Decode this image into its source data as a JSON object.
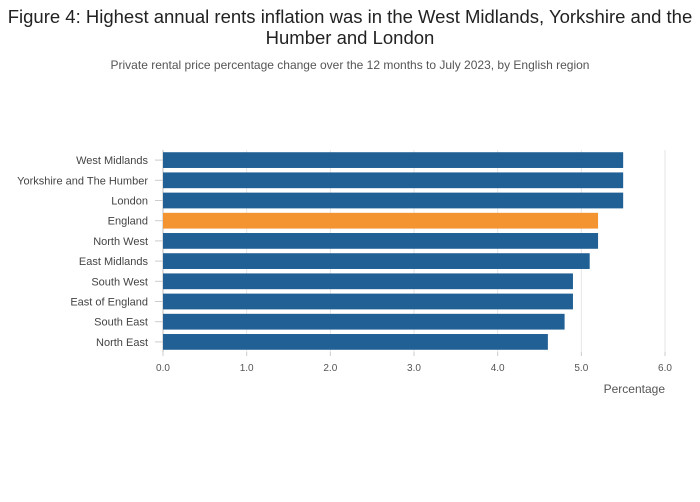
{
  "chart_data": {
    "type": "bar",
    "orientation": "horizontal",
    "title": "Figure 4: Highest annual rents inflation was in the West Midlands, Yorkshire and the Humber and London",
    "subtitle": "Private rental price percentage change over the 12 months to July 2023, by English region",
    "xlabel": "Percentage",
    "ylabel": "",
    "xlim": [
      0,
      6
    ],
    "xticks": [
      "0.0",
      "1.0",
      "2.0",
      "3.0",
      "4.0",
      "5.0",
      "6.0"
    ],
    "categories": [
      "West Midlands",
      "Yorkshire and The Humber",
      "London",
      "England",
      "North West",
      "East Midlands",
      "South West",
      "East of England",
      "South East",
      "North East"
    ],
    "values": [
      5.5,
      5.5,
      5.5,
      5.2,
      5.2,
      5.1,
      4.9,
      4.9,
      4.8,
      4.6
    ],
    "highlight": "England",
    "colors": {
      "default": "#206095",
      "highlight": "#f39431"
    },
    "grid": true,
    "legend": "none"
  }
}
